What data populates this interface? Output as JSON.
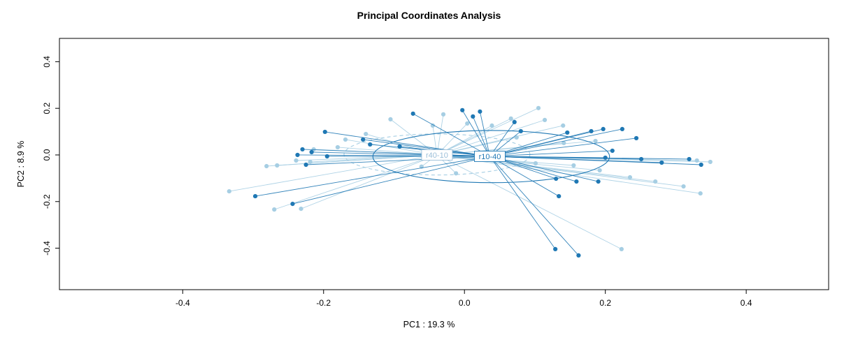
{
  "title": "Principal Coordinates Analysis",
  "chart_data": {
    "type": "scatter",
    "title": "Principal Coordinates Analysis",
    "xlabel": "PC1 :  19.3 %",
    "ylabel": "PC2 :  8.9 %",
    "xlim": [
      -0.575,
      0.517
    ],
    "ylim": [
      -0.578,
      0.5
    ],
    "grid": false,
    "legend_position": "none",
    "annotation_note": "ordination spider plot: lines join each sample point to its group centroid; ellipses show group spread; centroid labels drawn in white boxes",
    "xticks": [
      {
        "value": -0.4,
        "label": "-0.4"
      },
      {
        "value": -0.2,
        "label": "-0.2"
      },
      {
        "value": 0.0,
        "label": "0.0"
      },
      {
        "value": 0.2,
        "label": "0.2"
      },
      {
        "value": 0.4,
        "label": "0.4"
      }
    ],
    "yticks": [
      {
        "value": -0.4,
        "label": "-0.4"
      },
      {
        "value": -0.2,
        "label": "-0.2"
      },
      {
        "value": 0.0,
        "label": "0.0"
      },
      {
        "value": 0.2,
        "label": "0.2"
      },
      {
        "value": 0.4,
        "label": "0.4"
      }
    ],
    "groups": [
      {
        "name": "r40-10",
        "color": "#A6CEE3",
        "label_color": "#9bbfd9",
        "centroid": [
          -0.039,
          0.0
        ],
        "ellipse": {
          "cx": -0.039,
          "cy": 0.002,
          "rx": 0.132,
          "ry": 0.088,
          "style": "dashed"
        },
        "points": [
          [
            -0.334,
            -0.156
          ],
          [
            -0.27,
            -0.234
          ],
          [
            -0.232,
            -0.231
          ],
          [
            -0.281,
            -0.048
          ],
          [
            -0.266,
            -0.045
          ],
          [
            -0.239,
            -0.024
          ],
          [
            -0.219,
            -0.03
          ],
          [
            -0.214,
            0.024
          ],
          [
            -0.18,
            0.033
          ],
          [
            -0.169,
            0.066
          ],
          [
            -0.14,
            0.09
          ],
          [
            -0.105,
            0.153
          ],
          [
            -0.045,
            0.126
          ],
          [
            -0.03,
            0.174
          ],
          [
            0.004,
            0.135
          ],
          [
            0.039,
            0.126
          ],
          [
            0.066,
            0.156
          ],
          [
            0.105,
            0.201
          ],
          [
            0.114,
            0.15
          ],
          [
            0.14,
            0.126
          ],
          [
            0.074,
            0.075
          ],
          [
            0.141,
            0.051
          ],
          [
            0.186,
            0.06
          ],
          [
            0.101,
            -0.036
          ],
          [
            0.155,
            -0.045
          ],
          [
            0.192,
            -0.066
          ],
          [
            0.235,
            -0.096
          ],
          [
            0.271,
            -0.114
          ],
          [
            0.311,
            -0.135
          ],
          [
            0.335,
            -0.165
          ],
          [
            0.33,
            -0.024
          ],
          [
            0.349,
            -0.03
          ],
          [
            0.223,
            -0.404
          ],
          [
            -0.061,
            -0.05
          ],
          [
            -0.012,
            -0.079
          ]
        ]
      },
      {
        "name": "r10-40",
        "color": "#1F78B4",
        "label_color": "#1F78B4",
        "centroid": [
          0.036,
          -0.006
        ],
        "ellipse": {
          "cx": 0.038,
          "cy": -0.007,
          "rx": 0.168,
          "ry": 0.112,
          "style": "solid"
        },
        "points": [
          [
            -0.198,
            0.099
          ],
          [
            -0.23,
            0.024
          ],
          [
            -0.217,
            0.012
          ],
          [
            -0.237,
            0.0
          ],
          [
            -0.195,
            -0.006
          ],
          [
            -0.225,
            -0.042
          ],
          [
            -0.297,
            -0.177
          ],
          [
            -0.244,
            -0.21
          ],
          [
            -0.144,
            0.066
          ],
          [
            -0.134,
            0.045
          ],
          [
            -0.092,
            0.036
          ],
          [
            -0.073,
            0.177
          ],
          [
            -0.003,
            0.192
          ],
          [
            0.022,
            0.186
          ],
          [
            0.012,
            0.165
          ],
          [
            0.071,
            0.141
          ],
          [
            0.08,
            0.102
          ],
          [
            0.146,
            0.096
          ],
          [
            0.18,
            0.102
          ],
          [
            0.197,
            0.111
          ],
          [
            0.224,
            0.111
          ],
          [
            0.244,
            0.072
          ],
          [
            0.21,
            0.018
          ],
          [
            0.2,
            -0.012
          ],
          [
            0.251,
            -0.018
          ],
          [
            0.28,
            -0.033
          ],
          [
            0.319,
            -0.018
          ],
          [
            0.336,
            -0.042
          ],
          [
            0.13,
            -0.102
          ],
          [
            0.159,
            -0.114
          ],
          [
            0.19,
            -0.114
          ],
          [
            0.134,
            -0.177
          ],
          [
            0.129,
            -0.404
          ],
          [
            0.162,
            -0.431
          ]
        ]
      }
    ]
  }
}
